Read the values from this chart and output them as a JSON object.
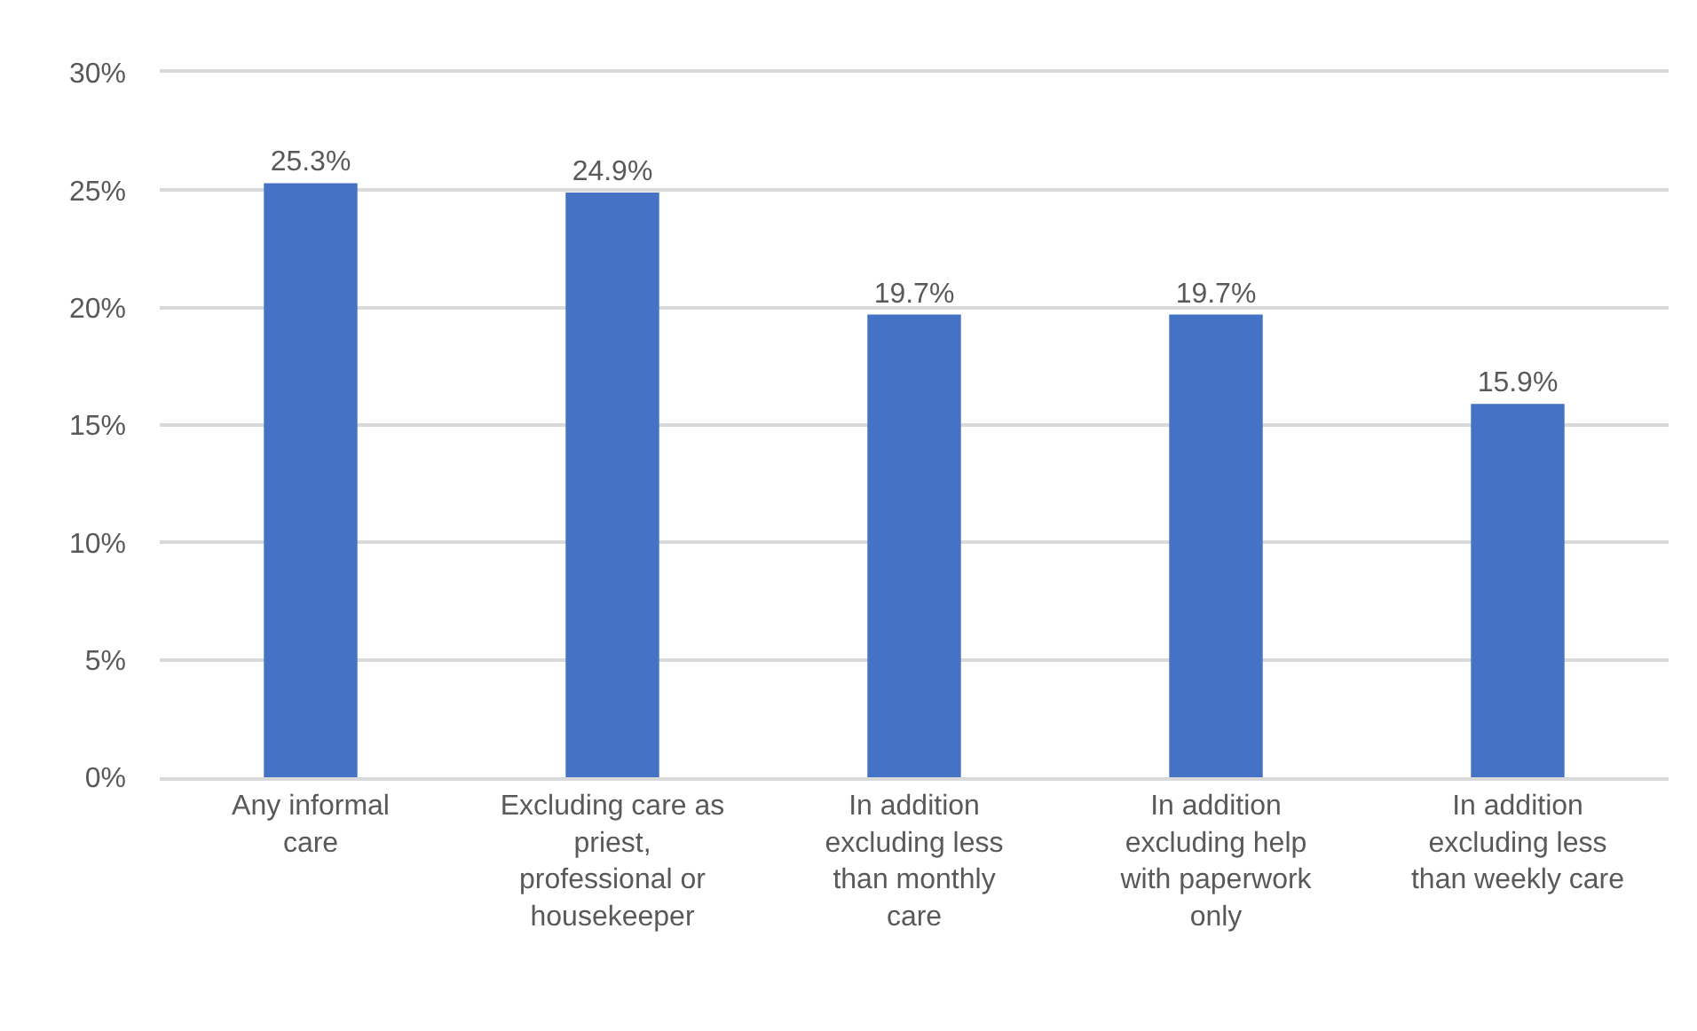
{
  "chart_data": {
    "type": "bar",
    "categories": [
      "Any informal\ncare",
      "Excluding care as\npriest,\nprofessional or\nhousekeeper",
      "In addition\nexcluding less\nthan monthly\ncare",
      "In addition\nexcluding help\nwith paperwork\nonly",
      "In addition\nexcluding less\nthan weekly care"
    ],
    "values": [
      25.3,
      24.9,
      19.7,
      19.7,
      15.9
    ],
    "value_labels": [
      "25.3%",
      "24.9%",
      "19.7%",
      "19.7%",
      "15.9%"
    ],
    "color": "#4472c4",
    "ylim": [
      0,
      30
    ],
    "yticks": [
      {
        "value": 0,
        "label": "0%"
      },
      {
        "value": 5,
        "label": "5%"
      },
      {
        "value": 10,
        "label": "10%"
      },
      {
        "value": 15,
        "label": "15%"
      },
      {
        "value": 20,
        "label": "20%"
      },
      {
        "value": 25,
        "label": "25%"
      },
      {
        "value": 30,
        "label": "30%"
      }
    ],
    "grid": "y"
  }
}
